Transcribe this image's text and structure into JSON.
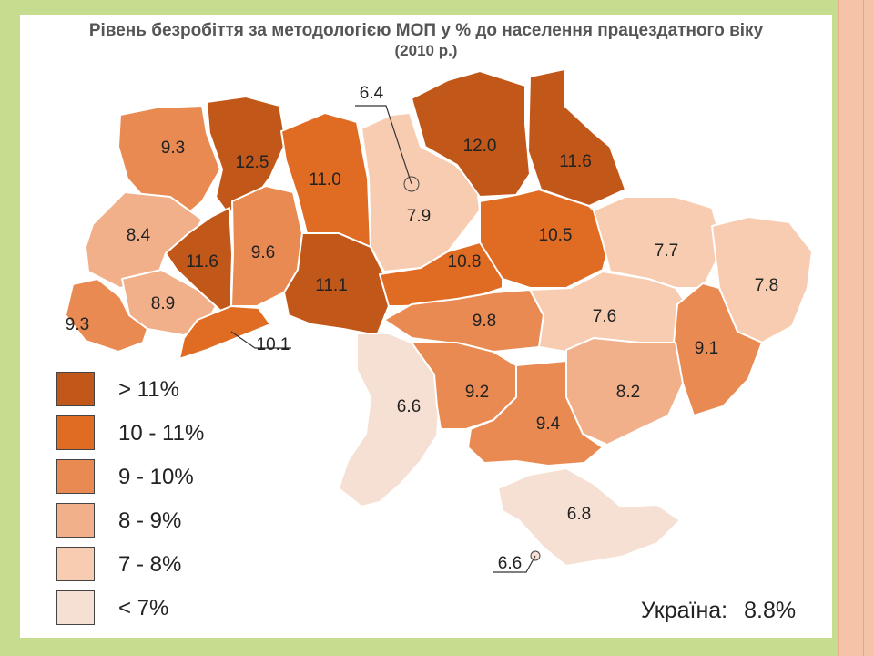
{
  "title": "Рівень безробіття за методологією МОП у % до населення працездатного віку",
  "subtitle": "(2010 р.)",
  "colors": {
    "c1": "#c2571a",
    "c2": "#e06b22",
    "c3": "#e98a52",
    "c4": "#f1b08a",
    "c5": "#f8ccb0",
    "c6": "#f5e0d3"
  },
  "legend": [
    {
      "label": "> 11%",
      "color": "#c2571a"
    },
    {
      "label": "10 - 11%",
      "color": "#e06b22"
    },
    {
      "label": "9 - 10%",
      "color": "#e98a52"
    },
    {
      "label": "8 - 9%",
      "color": "#f1b08a"
    },
    {
      "label": "7 - 8%",
      "color": "#f8ccb0"
    },
    {
      "label": "< 7%",
      "color": "#f5e0d3"
    }
  ],
  "regions": {
    "volyn": "9.3",
    "rivne": "12.5",
    "zhytomyr": "11.0",
    "kyiv_oblast": "7.9",
    "kyiv_city": "6.4",
    "chernihiv": "12.0",
    "sumy": "11.6",
    "lviv": "8.4",
    "ternopil": "11.6",
    "khmelnytskyi": "9.6",
    "vinnytsia": "11.1",
    "cherkasy": "10.8",
    "poltava": "10.5",
    "kharkiv": "7.7",
    "luhansk": "7.8",
    "zakarpattia": "9.3",
    "ivano_frankivsk": "8.9",
    "chernivtsi": "10.1",
    "kirovohrad": "9.8",
    "dnipropetrovsk": "7.6",
    "donetsk": "9.1",
    "odesa": "6.6",
    "mykolaiv": "9.2",
    "zaporizhzhia": "8.2",
    "kherson": "9.4",
    "crimea": "6.8",
    "sevastopol": "6.6"
  },
  "total": {
    "label": "Україна:",
    "value": "8.8%"
  }
}
